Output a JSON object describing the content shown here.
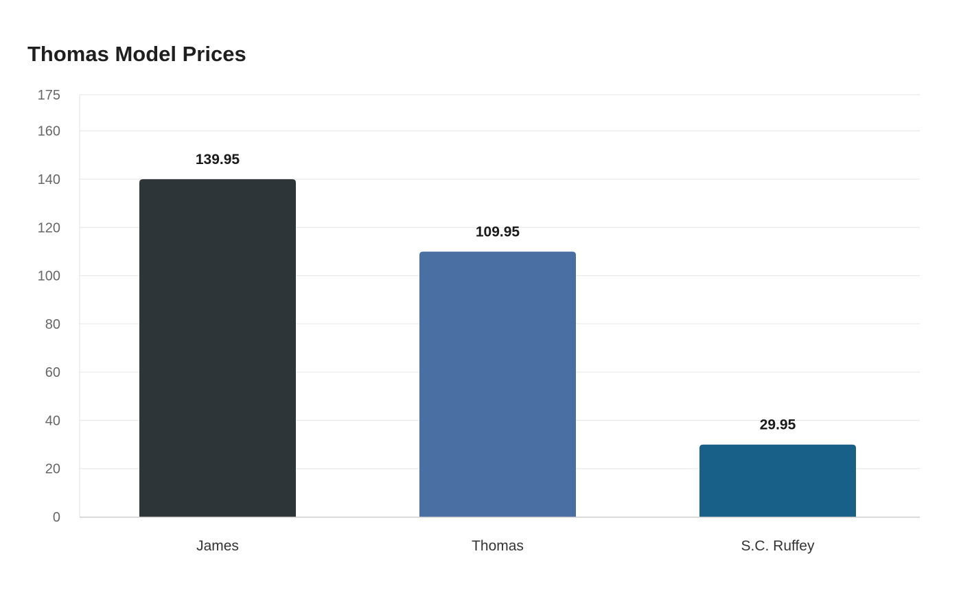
{
  "chart_data": {
    "type": "bar",
    "title": "Thomas Model Prices",
    "xlabel": "",
    "ylabel": "",
    "categories": [
      "James",
      "Thomas",
      "S.C. Ruffey"
    ],
    "values": [
      139.95,
      109.95,
      29.95
    ],
    "data_labels": [
      "139.95",
      "109.95",
      "29.95"
    ],
    "colors": [
      "#2e3538",
      "#4a6fa2",
      "#186088"
    ],
    "ylim": [
      0,
      175
    ],
    "yticks": [
      0,
      20,
      40,
      60,
      80,
      100,
      120,
      140,
      160,
      175
    ],
    "grid": true,
    "legend": "none"
  }
}
